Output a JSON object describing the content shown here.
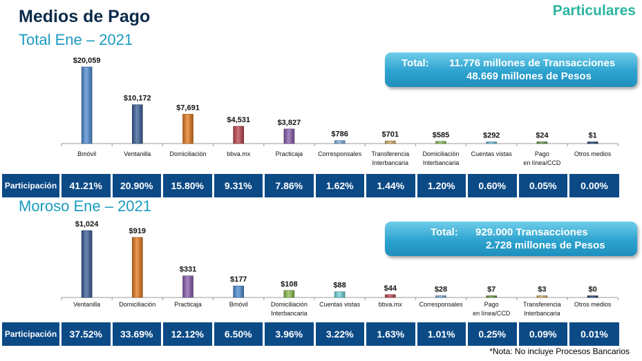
{
  "header": {
    "title": "Medios de Pago",
    "brand": "Particulares"
  },
  "sections": [
    {
      "subtitle": "Total Ene – 2021",
      "total_label": "Total:",
      "total_line1": "11.776 millones de Transacciones",
      "total_line2": "48.669 millones de Pesos",
      "participation_header": "Participación"
    },
    {
      "subtitle": "Moroso Ene – 2021",
      "total_label": "Total:",
      "total_line1": "929.000 Transacciones",
      "total_line2": "2.728 millones de Pesos",
      "participation_header": "Participación"
    }
  ],
  "note": "*Nota: No incluye Procesos Bancarios",
  "chart_data": [
    {
      "type": "bar",
      "categories": [
        "Bmóvil",
        "Ventanilla",
        "Domiciliación",
        "bbva.mx",
        "Practicaja",
        "Corresponsales",
        "Transferencia Interbancaria",
        "Domiciliación Interbancaria",
        "Cuentas vistas",
        "Pago en línea/CCD",
        "Otros medios"
      ],
      "values": [
        20059,
        10172,
        7691,
        4531,
        3827,
        786,
        701,
        585,
        292,
        24,
        1
      ],
      "value_labels": [
        "$20,059",
        "$10,172",
        "$7,691",
        "$4,531",
        "$3,827",
        "$786",
        "$701",
        "$585",
        "$292",
        "$24",
        "$1"
      ],
      "participation": [
        "41.21%",
        "20.90%",
        "15.80%",
        "9.31%",
        "7.86%",
        "1.62%",
        "1.44%",
        "1.20%",
        "0.60%",
        "0.05%",
        "0.00%"
      ],
      "colors": [
        "#4f8ed6",
        "#3a5f9a",
        "#e77b1c",
        "#c0464f",
        "#8a5cae",
        "#7fb0df",
        "#d9b064",
        "#8cbf50",
        "#6fc3e0",
        "#6a9b46",
        "#24457a"
      ],
      "ylim": [
        0,
        20059
      ]
    },
    {
      "type": "bar",
      "categories": [
        "Ventanilla",
        "Domiciliación",
        "Practicaja",
        "Bmóvil",
        "Domiciliación Interbancaria",
        "Cuentas vistas",
        "bbva.mx",
        "Corresponsales",
        "Pago en línea/CCD",
        "Transferencia Interbancaria",
        "Otros medios"
      ],
      "values": [
        1024,
        919,
        331,
        177,
        108,
        88,
        44,
        28,
        7,
        3,
        0
      ],
      "value_labels": [
        "$1,024",
        "$919",
        "$331",
        "$177",
        "$108",
        "$88",
        "$44",
        "$28",
        "$7",
        "$3",
        "$0"
      ],
      "participation": [
        "37.52%",
        "33.69%",
        "12.12%",
        "6.50%",
        "3.96%",
        "3.22%",
        "1.63%",
        "1.01%",
        "0.25%",
        "0.09%",
        "0.01%"
      ],
      "colors": [
        "#3a5f9a",
        "#e77b1c",
        "#8a5cae",
        "#4f8ed6",
        "#8cbf50",
        "#6fd4dc",
        "#c0464f",
        "#7fb0df",
        "#6a9b46",
        "#d9b064",
        "#24457a"
      ],
      "ylim": [
        0,
        1024
      ]
    }
  ]
}
